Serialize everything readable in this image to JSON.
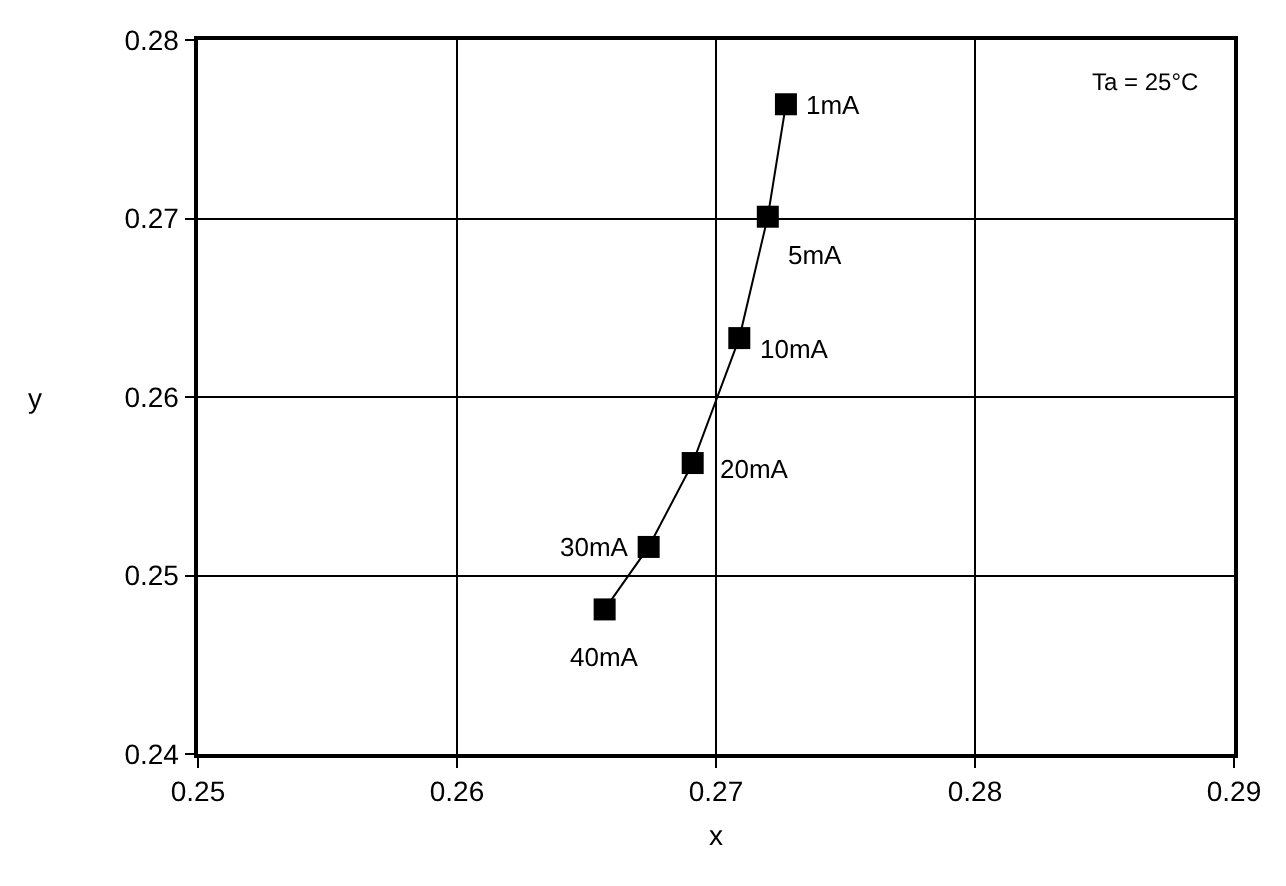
{
  "chart_data": {
    "type": "line",
    "xlabel": "x",
    "ylabel": "y",
    "x": [
      0.2727,
      0.272,
      0.2709,
      0.2691,
      0.2674,
      0.2657
    ],
    "series": [
      {
        "color": "#000000",
        "values": [
          0.2764,
          0.2701,
          0.2633,
          0.2563,
          0.2516,
          0.2481
        ]
      }
    ],
    "xlim": [
      0.25,
      0.29
    ],
    "xticks": [
      0.25,
      0.26,
      0.27,
      0.28,
      0.29
    ],
    "ylim": [
      0.24,
      0.28
    ],
    "yticks": [
      0.24,
      0.25,
      0.26,
      0.27,
      0.28
    ],
    "grid": true,
    "legend": false,
    "marker": "square",
    "line_style": "solid",
    "annotations": [
      {
        "text": "1mA",
        "x": 0.2727,
        "y": 0.2764
      },
      {
        "text": "5mA",
        "x": 0.272,
        "y": 0.2701
      },
      {
        "text": "10mA",
        "x": 0.2709,
        "y": 0.2633
      },
      {
        "text": "20mA",
        "x": 0.2691,
        "y": 0.2563
      },
      {
        "text": "30mA",
        "x": 0.2674,
        "y": 0.2516
      },
      {
        "text": "40mA",
        "x": 0.2657,
        "y": 0.2481
      },
      "Ta = 25°C"
    ]
  }
}
